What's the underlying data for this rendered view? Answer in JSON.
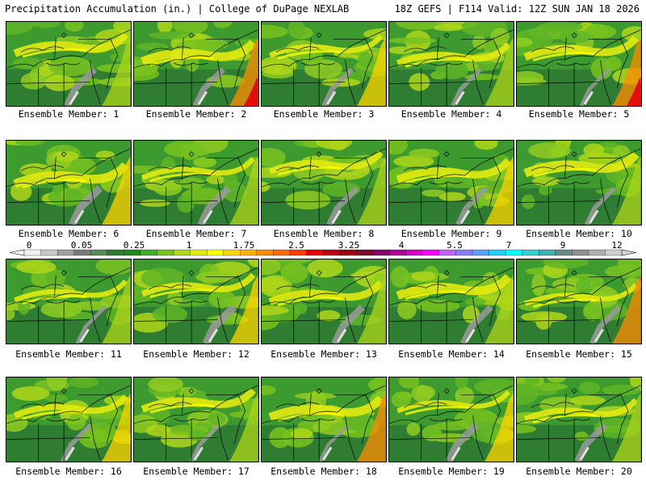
{
  "header": {
    "left": "Precipitation Accumulation (in.) | College of DuPage NEXLAB",
    "right": "18Z GEFS | F114 Valid: 12Z SUN JAN 18 2026"
  },
  "panels": [
    {
      "label": "Ensemble Member: 1"
    },
    {
      "label": "Ensemble Member: 2"
    },
    {
      "label": "Ensemble Member: 3"
    },
    {
      "label": "Ensemble Member: 4"
    },
    {
      "label": "Ensemble Member: 5"
    },
    {
      "label": "Ensemble Member: 6"
    },
    {
      "label": "Ensemble Member: 7"
    },
    {
      "label": "Ensemble Member: 8"
    },
    {
      "label": "Ensemble Member: 9"
    },
    {
      "label": "Ensemble Member: 10"
    },
    {
      "label": "Ensemble Member: 11"
    },
    {
      "label": "Ensemble Member: 12"
    },
    {
      "label": "Ensemble Member: 13"
    },
    {
      "label": "Ensemble Member: 14"
    },
    {
      "label": "Ensemble Member: 15"
    },
    {
      "label": "Ensemble Member: 16"
    },
    {
      "label": "Ensemble Member: 17"
    },
    {
      "label": "Ensemble Member: 18"
    },
    {
      "label": "Ensemble Member: 19"
    },
    {
      "label": "Ensemble Member: 20"
    }
  ],
  "colorbar": {
    "labels": [
      "0",
      "0.05",
      "0.25",
      "1",
      "1.75",
      "2.5",
      "3.25",
      "4",
      "5.5",
      "7",
      "9",
      "12"
    ],
    "colors": [
      "#f0f0f0",
      "#c8c8c8",
      "#a0a0a0",
      "#7a7a7a",
      "#5a8a5a",
      "#2e7d32",
      "#1b8a1b",
      "#3fae2a",
      "#77c21f",
      "#aed61a",
      "#e2ea10",
      "#ffff00",
      "#ffd700",
      "#ffb000",
      "#ff8c00",
      "#ff6a00",
      "#ff3c00",
      "#e8000a",
      "#c00010",
      "#9a0010",
      "#7a0a2a",
      "#8a006a",
      "#b0009a",
      "#d800c8",
      "#ff00ff",
      "#c060ff",
      "#8a7cff",
      "#5aa0ff",
      "#20d0ff",
      "#00ffff",
      "#30d0d0",
      "#40b0b0",
      "#6a8a8a",
      "#909090",
      "#b0b0b0",
      "#d0d0d0"
    ]
  }
}
